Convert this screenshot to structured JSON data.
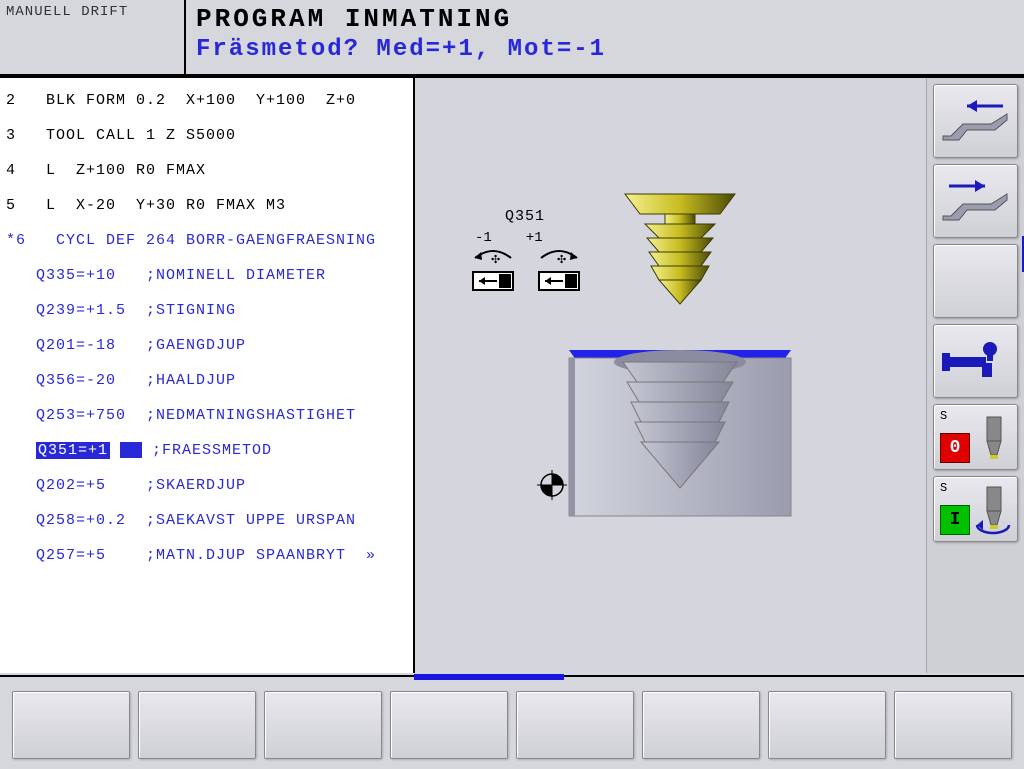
{
  "header": {
    "mode": "MANUELL DRIFT",
    "title": "PROGRAM INMATNING",
    "prompt": "Fräsmetod? Med=+1, Mot=-1"
  },
  "code": {
    "lines": [
      {
        "n": "2",
        "text": "BLK FORM 0.2  X+100  Y+100  Z+0",
        "blue": false
      },
      {
        "n": "3",
        "text": "TOOL CALL 1 Z S5000",
        "blue": false
      },
      {
        "n": "4",
        "text": "L  Z+100 R0 FMAX",
        "blue": false
      },
      {
        "n": "5",
        "text": "L  X-20  Y+30 R0 FMAX M3",
        "blue": false
      },
      {
        "n": "*6",
        "text": " CYCL DEF 264 BORR-GAENGFRAESNING",
        "blue": true
      }
    ],
    "params": [
      {
        "q": "Q335=+10",
        "c": ";NOMINELL DIAMETER",
        "hl": false
      },
      {
        "q": "Q239=+1.5",
        "c": ";STIGNING",
        "hl": false
      },
      {
        "q": "Q201=-18",
        "c": ";GAENGDJUP",
        "hl": false
      },
      {
        "q": "Q356=-20",
        "c": ";HAALDJUP",
        "hl": false
      },
      {
        "q": "Q253=+750",
        "c": ";NEDMATNINGSHASTIGHET",
        "hl": false
      },
      {
        "q": "Q351=+1",
        "c": ";FRAESSMETOD",
        "hl": true
      },
      {
        "q": "Q202=+5",
        "c": ";SKAERDJUP",
        "hl": false
      },
      {
        "q": "Q258=+0.2",
        "c": ";SAEKAVST UPPE URSPAN",
        "hl": false
      },
      {
        "q": "Q257=+5",
        "c": ";MATN.DJUP SPAANBRYT  »",
        "hl": false
      }
    ]
  },
  "viz": {
    "param_label": "Q351",
    "minus": "-1",
    "plus": "+1",
    "colors": {
      "tool_light": "#d8d040",
      "tool_dark": "#5a5a10",
      "block_face": "#b8bac4",
      "block_top": "#2222e8",
      "thread": "#a8aab6"
    }
  },
  "toolbar": {
    "s_label": "S",
    "stop": "0",
    "start": "I"
  }
}
